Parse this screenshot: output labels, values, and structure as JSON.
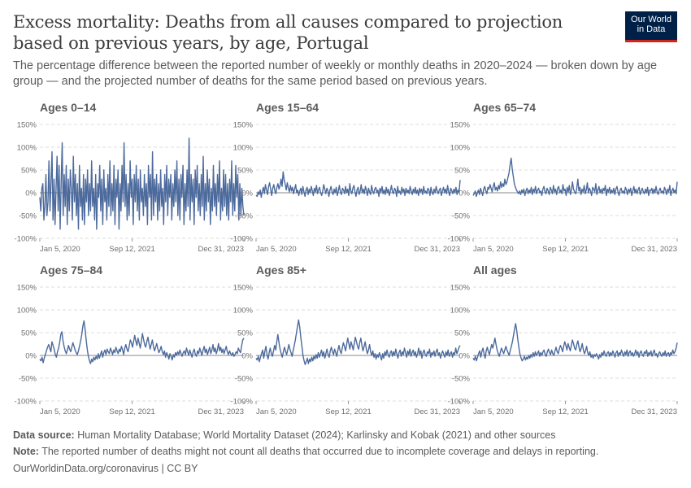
{
  "header": {
    "title": "Excess mortality: Deaths from all causes compared to projection based on previous years, by age, Portugal",
    "subtitle": "The percentage difference between the reported number of weekly or monthly deaths in 2020–2024 — broken down by age group — and the projected number of deaths for the same period based on previous years.",
    "logo_line1": "Our World",
    "logo_line2": "in Data"
  },
  "footer": {
    "source_label": "Data source:",
    "source_text": "Human Mortality Database; World Mortality Dataset (2024); Karlinsky and Kobak (2021) and other sources",
    "note_label": "Note:",
    "note_text": "The reported number of deaths might not count all deaths that occurred due to incomplete coverage and delays in reporting.",
    "url_text": "OurWorldinData.org/coronavirus | CC BY"
  },
  "colors": {
    "line": "#4c6a9c",
    "grid": "#dddddd",
    "zero": "#8a8a8a",
    "logo_bg": "#002147",
    "logo_accent": "#ce261e"
  },
  "chart_data": {
    "type": "line",
    "yunit": "%",
    "ylim": [
      -100,
      150
    ],
    "yticks": [
      "150%",
      "100%",
      "50%",
      "0%",
      "-50%",
      "-100%"
    ],
    "ytick_values": [
      150,
      100,
      50,
      0,
      -50,
      -100
    ],
    "xlim": [
      "2020-01-05",
      "2024-01-21"
    ],
    "xticks": [
      "Jan 5, 2020",
      "Sep 12, 2021",
      "Dec 31, 2023"
    ],
    "frequency": "weekly",
    "panels": [
      {
        "name": "Ages 0–14",
        "values": [
          -10,
          -40,
          10,
          20,
          -60,
          -30,
          40,
          -50,
          -20,
          70,
          -40,
          20,
          90,
          -60,
          30,
          -70,
          10,
          80,
          -40,
          60,
          -80,
          20,
          110,
          -50,
          40,
          -30,
          60,
          -70,
          30,
          -40,
          50,
          10,
          -60,
          80,
          -20,
          40,
          -50,
          20,
          -80,
          60,
          -30,
          10,
          -60,
          40,
          -70,
          30,
          -20,
          50,
          -50,
          20,
          -40,
          70,
          -30,
          10,
          -60,
          40,
          -80,
          20,
          -10,
          60,
          -40,
          30,
          -70,
          50,
          -20,
          10,
          -60,
          40,
          -30,
          70,
          -50,
          20,
          -40,
          60,
          -70,
          30,
          -10,
          50,
          -80,
          20,
          -40,
          60,
          -20,
          110,
          -30,
          40,
          -60,
          20,
          -50,
          70,
          -10,
          30,
          -70,
          40,
          -20,
          60,
          -40,
          30,
          -60,
          50,
          -20,
          10,
          -50,
          40,
          -30,
          20,
          -70,
          60,
          -10,
          40,
          -60,
          90,
          -50,
          30,
          -20,
          40,
          -60,
          20,
          -40,
          50,
          -30,
          10,
          -70,
          40,
          -20,
          60,
          -50,
          30,
          -10,
          40,
          -60,
          20,
          -30,
          50,
          -20,
          70,
          -50,
          30,
          -60,
          40,
          -10,
          60,
          -70,
          20,
          -40,
          50,
          -30,
          120,
          -60,
          40,
          -20,
          30,
          -70,
          50,
          -10,
          60,
          -40,
          20,
          -50,
          40,
          -30,
          80,
          -60,
          20,
          -40,
          50,
          -20,
          30,
          -70,
          10,
          -40,
          60,
          -30,
          20,
          -50,
          40,
          -20,
          70,
          -60,
          10,
          -40,
          50,
          -30,
          40,
          -50,
          20,
          -60,
          30,
          -20,
          70,
          -50,
          20,
          -40,
          60,
          -10,
          40,
          -60,
          20,
          -50,
          10,
          -30,
          -50
        ]
      },
      {
        "name": "Ages 15–64",
        "values": [
          -5,
          -8,
          2,
          -4,
          6,
          -10,
          4,
          12,
          -2,
          18,
          6,
          -4,
          14,
          22,
          8,
          -6,
          10,
          18,
          4,
          -2,
          12,
          20,
          8,
          16,
          30,
          14,
          46,
          28,
          18,
          6,
          22,
          10,
          2,
          16,
          4,
          12,
          -2,
          8,
          18,
          0,
          6,
          -6,
          4,
          10,
          -4,
          14,
          2,
          -8,
          6,
          12,
          -4,
          8,
          0,
          14,
          4,
          -6,
          10,
          2,
          16,
          -2,
          6,
          12,
          0,
          -6,
          4,
          18,
          8,
          -2,
          10,
          4,
          -8,
          6,
          14,
          2,
          -4,
          8,
          0,
          12,
          -6,
          4,
          16,
          2,
          -4,
          10,
          6,
          -2,
          14,
          0,
          8,
          -6,
          20,
          4,
          -2,
          10,
          16,
          2,
          -8,
          6,
          12,
          -4,
          4,
          18,
          0,
          8,
          -2,
          14,
          6,
          -6,
          10,
          2,
          -4,
          16,
          4,
          -2,
          8,
          12,
          0,
          6,
          -8,
          10,
          2,
          14,
          -2,
          6,
          -4,
          12,
          0,
          8,
          -6,
          4,
          16,
          2,
          -2,
          10,
          6,
          -8,
          14,
          0,
          4,
          -4,
          12,
          2,
          8,
          -6,
          10,
          0,
          6,
          -2,
          14,
          4,
          -4,
          8,
          0,
          12,
          -2,
          6,
          -6,
          10,
          2,
          8,
          -4,
          14,
          0,
          4,
          -2,
          10,
          6,
          -6,
          12,
          2,
          -4,
          8,
          0,
          14,
          4,
          -2,
          6,
          10,
          -6,
          4,
          12,
          0,
          8,
          -2,
          16,
          2,
          -6,
          10,
          4,
          -2,
          8,
          0,
          12,
          -4,
          6,
          2,
          28
        ]
      },
      {
        "name": "Ages 65–74",
        "values": [
          -6,
          -2,
          4,
          -8,
          0,
          6,
          -4,
          10,
          2,
          -6,
          8,
          14,
          4,
          -2,
          12,
          8,
          18,
          10,
          2,
          14,
          22,
          6,
          12,
          4,
          16,
          8,
          24,
          12,
          20,
          14,
          30,
          18,
          24,
          34,
          44,
          62,
          76,
          52,
          36,
          20,
          12,
          6,
          2,
          -2,
          4,
          -4,
          6,
          0,
          8,
          -6,
          4,
          10,
          -2,
          6,
          0,
          12,
          -4,
          8,
          2,
          14,
          -2,
          6,
          10,
          0,
          4,
          -6,
          8,
          14,
          2,
          -2,
          10,
          4,
          -4,
          12,
          6,
          -2,
          16,
          2,
          8,
          -4,
          10,
          14,
          0,
          6,
          -2,
          18,
          4,
          8,
          -6,
          12,
          2,
          16,
          -4,
          6,
          24,
          8,
          2,
          -2,
          10,
          30,
          4,
          12,
          -4,
          8,
          2,
          16,
          -2,
          6,
          22,
          0,
          10,
          4,
          -6,
          12,
          8,
          2,
          20,
          -4,
          6,
          14,
          0,
          8,
          -2,
          10,
          4,
          16,
          -6,
          8,
          2,
          12,
          -2,
          6,
          0,
          10,
          -4,
          8,
          14,
          2,
          -6,
          6,
          10,
          0,
          4,
          -2,
          12,
          6,
          -4,
          8,
          2,
          10,
          -6,
          4,
          14,
          0,
          8,
          -2,
          6,
          12,
          -4,
          4,
          10,
          2,
          -2,
          8,
          0,
          12,
          -6,
          6,
          4,
          10,
          -2,
          8,
          0,
          14,
          2,
          -4,
          6,
          10,
          0,
          4,
          -2,
          12,
          6,
          -4,
          8,
          2,
          16,
          -6,
          4,
          10,
          0,
          6,
          -2,
          24
        ]
      },
      {
        "name": "Ages 75–84",
        "values": [
          -8,
          -12,
          -4,
          -16,
          -6,
          2,
          10,
          18,
          24,
          16,
          8,
          30,
          22,
          14,
          2,
          -4,
          8,
          16,
          28,
          46,
          52,
          32,
          20,
          10,
          4,
          12,
          22,
          14,
          8,
          18,
          28,
          20,
          12,
          6,
          2,
          10,
          20,
          32,
          46,
          64,
          76,
          58,
          34,
          14,
          -2,
          -12,
          -18,
          -8,
          -14,
          -4,
          -10,
          -2,
          -8,
          4,
          -6,
          2,
          10,
          -4,
          6,
          12,
          2,
          14,
          8,
          4,
          16,
          10,
          2,
          12,
          6,
          18,
          10,
          4,
          14,
          8,
          20,
          12,
          2,
          16,
          24,
          14,
          8,
          20,
          34,
          28,
          18,
          30,
          44,
          32,
          22,
          38,
          28,
          16,
          30,
          48,
          36,
          24,
          18,
          30,
          40,
          26,
          14,
          24,
          34,
          20,
          10,
          18,
          26,
          14,
          6,
          12,
          20,
          8,
          2,
          10,
          -4,
          6,
          0,
          -8,
          4,
          -2,
          -10,
          2,
          -4,
          6,
          0,
          8,
          2,
          12,
          4,
          -2,
          6,
          10,
          2,
          16,
          8,
          0,
          12,
          4,
          -4,
          8,
          14,
          2,
          -2,
          10,
          4,
          16,
          8,
          0,
          12,
          20,
          6,
          14,
          2,
          10,
          18,
          4,
          12,
          24,
          8,
          16,
          4,
          12,
          26,
          10,
          18,
          6,
          14,
          4,
          12,
          20,
          8,
          2,
          10,
          4,
          0,
          6,
          -2,
          2,
          8,
          4,
          16,
          10,
          6,
          22,
          34,
          38
        ]
      },
      {
        "name": "Ages 85+",
        "values": [
          -6,
          -10,
          -2,
          -14,
          -4,
          4,
          12,
          -6,
          8,
          20,
          2,
          -8,
          6,
          16,
          4,
          -2,
          10,
          22,
          12,
          30,
          46,
          28,
          14,
          4,
          -4,
          8,
          18,
          10,
          2,
          12,
          24,
          14,
          6,
          -2,
          10,
          22,
          34,
          50,
          64,
          78,
          62,
          40,
          20,
          0,
          -12,
          -20,
          -14,
          -6,
          -18,
          -8,
          -14,
          -4,
          -12,
          -2,
          -8,
          2,
          -6,
          6,
          -4,
          4,
          12,
          -2,
          8,
          -6,
          4,
          14,
          2,
          -4,
          10,
          18,
          8,
          2,
          14,
          6,
          -2,
          12,
          22,
          10,
          4,
          16,
          28,
          20,
          10,
          24,
          38,
          26,
          14,
          30,
          22,
          12,
          26,
          40,
          30,
          20,
          14,
          28,
          38,
          22,
          10,
          20,
          30,
          14,
          4,
          12,
          24,
          8,
          0,
          10,
          -4,
          4,
          -8,
          2,
          -4,
          6,
          -2,
          -10,
          4,
          -6,
          8,
          0,
          12,
          2,
          -4,
          6,
          10,
          -2,
          8,
          0,
          14,
          4,
          -6,
          6,
          12,
          -2,
          8,
          2,
          16,
          6,
          -4,
          10,
          2,
          14,
          -2,
          6,
          12,
          0,
          8,
          -4,
          4,
          16,
          2,
          10,
          -6,
          6,
          12,
          2,
          -2,
          8,
          4,
          14,
          -4,
          6,
          2,
          10,
          -2,
          8,
          14,
          0,
          6,
          -6,
          4,
          10,
          2,
          -4,
          8,
          0,
          12,
          -2,
          4,
          8,
          -4,
          6,
          2,
          16,
          4,
          10,
          18,
          22
        ]
      },
      {
        "name": "All ages",
        "values": [
          -6,
          -10,
          -2,
          -12,
          -4,
          4,
          10,
          -4,
          8,
          16,
          4,
          -6,
          10,
          18,
          8,
          2,
          14,
          24,
          16,
          26,
          38,
          24,
          12,
          4,
          -2,
          8,
          16,
          10,
          4,
          12,
          20,
          12,
          6,
          0,
          10,
          20,
          30,
          44,
          58,
          70,
          54,
          34,
          16,
          2,
          -6,
          -12,
          -8,
          -2,
          -10,
          -4,
          -8,
          0,
          -6,
          2,
          -4,
          6,
          -2,
          8,
          0,
          4,
          10,
          -2,
          6,
          0,
          8,
          12,
          2,
          -2,
          8,
          14,
          6,
          2,
          12,
          4,
          0,
          10,
          18,
          8,
          4,
          14,
          22,
          16,
          8,
          20,
          30,
          22,
          12,
          26,
          18,
          10,
          22,
          34,
          26,
          16,
          12,
          24,
          32,
          18,
          8,
          16,
          26,
          12,
          4,
          10,
          20,
          6,
          0,
          8,
          -4,
          2,
          -6,
          2,
          -2,
          4,
          -2,
          -8,
          2,
          -4,
          6,
          0,
          10,
          2,
          -2,
          6,
          8,
          -2,
          6,
          0,
          10,
          4,
          -4,
          6,
          10,
          -2,
          6,
          2,
          12,
          4,
          -2,
          8,
          2,
          12,
          -2,
          6,
          10,
          0,
          6,
          -2,
          4,
          12,
          2,
          8,
          -4,
          6,
          10,
          2,
          -2,
          8,
          4,
          12,
          -2,
          6,
          2,
          10,
          -2,
          6,
          12,
          0,
          4,
          -4,
          4,
          8,
          2,
          -2,
          6,
          0,
          10,
          -2,
          4,
          6,
          -2,
          6,
          2,
          12,
          4,
          8,
          16,
          28
        ]
      }
    ]
  }
}
